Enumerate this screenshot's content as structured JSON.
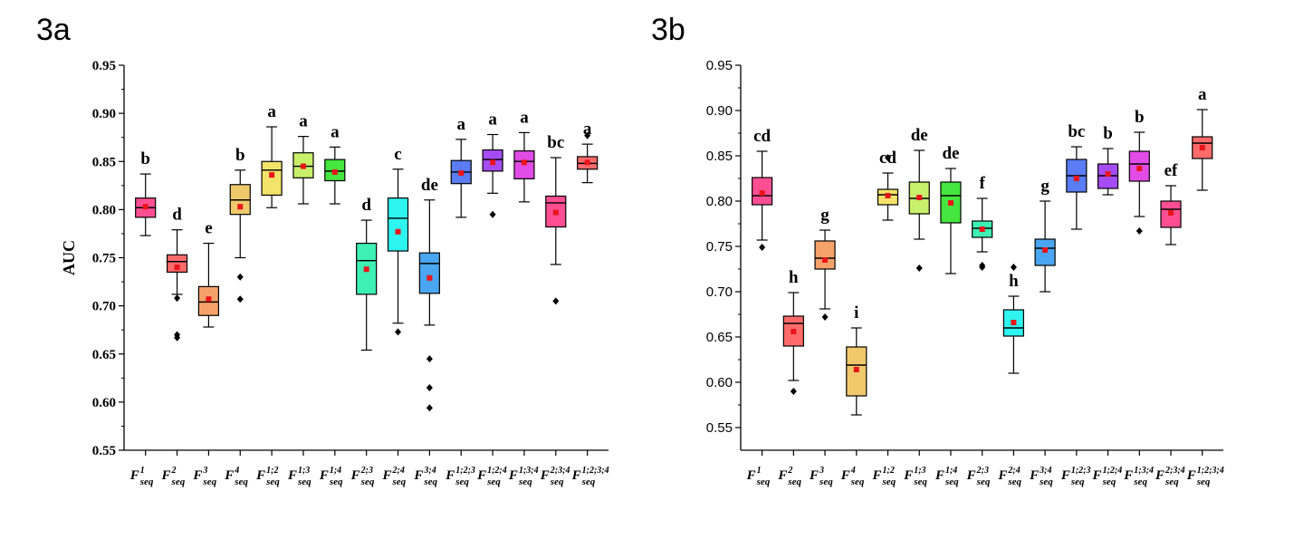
{
  "chart_data": [
    {
      "panel_label": "3a",
      "type": "box",
      "ylabel": "AUC",
      "ylim": [
        0.55,
        0.95
      ],
      "yticks": [
        "0.55",
        "0.60",
        "0.65",
        "0.70",
        "0.75",
        "0.80",
        "0.85",
        "0.90",
        "0.95"
      ],
      "categories": [
        {
          "base": "F",
          "sup": "1",
          "sub": "seq"
        },
        {
          "base": "F",
          "sup": "2",
          "sub": "seq"
        },
        {
          "base": "F",
          "sup": "3",
          "sub": "seq"
        },
        {
          "base": "F",
          "sup": "4",
          "sub": "seq"
        },
        {
          "base": "F",
          "sup": "1;2",
          "sub": "seq"
        },
        {
          "base": "F",
          "sup": "1;3",
          "sub": "seq"
        },
        {
          "base": "F",
          "sup": "1;4",
          "sub": "seq"
        },
        {
          "base": "F",
          "sup": "2;3",
          "sub": "seq"
        },
        {
          "base": "F",
          "sup": "2;4",
          "sub": "seq"
        },
        {
          "base": "F",
          "sup": "3;4",
          "sub": "seq"
        },
        {
          "base": "F",
          "sup": "1;2;3",
          "sub": "seq"
        },
        {
          "base": "F",
          "sup": "1;2;4",
          "sub": "seq"
        },
        {
          "base": "F",
          "sup": "1;3;4",
          "sub": "seq"
        },
        {
          "base": "F",
          "sup": "2;3;4",
          "sub": "seq"
        },
        {
          "base": "F",
          "sup": "1;2;3;4",
          "sub": "seq"
        }
      ],
      "boxes": [
        {
          "color": "#ff4f92",
          "whisker_low": 0.773,
          "q1": 0.792,
          "median": 0.802,
          "q3": 0.812,
          "whisker_high": 0.837,
          "mean": 0.803,
          "outliers": [],
          "letter": "b"
        },
        {
          "color": "#ff6b6b",
          "whisker_low": 0.712,
          "q1": 0.735,
          "median": 0.746,
          "q3": 0.753,
          "whisker_high": 0.779,
          "mean": 0.74,
          "outliers": [
            0.708,
            0.67,
            0.667
          ],
          "letter": "d"
        },
        {
          "color": "#f5a26a",
          "whisker_low": 0.678,
          "q1": 0.69,
          "median": 0.704,
          "q3": 0.72,
          "whisker_high": 0.765,
          "mean": 0.707,
          "outliers": [],
          "letter": "e"
        },
        {
          "color": "#f0c96c",
          "whisker_low": 0.75,
          "q1": 0.795,
          "median": 0.81,
          "q3": 0.826,
          "whisker_high": 0.841,
          "mean": 0.803,
          "outliers": [
            0.73,
            0.707
          ],
          "letter": "b"
        },
        {
          "color": "#f3e36a",
          "whisker_low": 0.802,
          "q1": 0.815,
          "median": 0.841,
          "q3": 0.85,
          "whisker_high": 0.886,
          "mean": 0.836,
          "outliers": [],
          "letter": "a"
        },
        {
          "color": "#c9f06a",
          "whisker_low": 0.806,
          "q1": 0.833,
          "median": 0.845,
          "q3": 0.859,
          "whisker_high": 0.876,
          "mean": 0.845,
          "outliers": [],
          "letter": "a"
        },
        {
          "color": "#45e63f",
          "whisker_low": 0.806,
          "q1": 0.83,
          "median": 0.84,
          "q3": 0.852,
          "whisker_high": 0.865,
          "mean": 0.839,
          "outliers": [],
          "letter": "a"
        },
        {
          "color": "#3ef0b3",
          "whisker_low": 0.654,
          "q1": 0.712,
          "median": 0.747,
          "q3": 0.765,
          "whisker_high": 0.789,
          "mean": 0.738,
          "outliers": [],
          "letter": "d"
        },
        {
          "color": "#2ef5f0",
          "whisker_low": 0.682,
          "q1": 0.757,
          "median": 0.791,
          "q3": 0.812,
          "whisker_high": 0.842,
          "mean": 0.777,
          "outliers": [
            0.673
          ],
          "letter": "c"
        },
        {
          "color": "#4aa6f0",
          "whisker_low": 0.68,
          "q1": 0.713,
          "median": 0.744,
          "q3": 0.755,
          "whisker_high": 0.81,
          "mean": 0.729,
          "outliers": [
            0.645,
            0.615,
            0.594
          ],
          "letter": "de"
        },
        {
          "color": "#5a7cf5",
          "whisker_low": 0.792,
          "q1": 0.827,
          "median": 0.839,
          "q3": 0.851,
          "whisker_high": 0.873,
          "mean": 0.838,
          "outliers": [],
          "letter": "a"
        },
        {
          "color": "#a64cf5",
          "whisker_low": 0.817,
          "q1": 0.84,
          "median": 0.852,
          "q3": 0.862,
          "whisker_high": 0.878,
          "mean": 0.849,
          "outliers": [
            0.795
          ],
          "letter": "a"
        },
        {
          "color": "#e24ce6",
          "whisker_low": 0.808,
          "q1": 0.832,
          "median": 0.85,
          "q3": 0.861,
          "whisker_high": 0.88,
          "mean": 0.849,
          "outliers": [],
          "letter": "a"
        },
        {
          "color": "#ff4f92",
          "whisker_low": 0.743,
          "q1": 0.782,
          "median": 0.807,
          "q3": 0.814,
          "whisker_high": 0.854,
          "mean": 0.797,
          "outliers": [
            0.705
          ],
          "letter": "bc"
        },
        {
          "color": "#ff6b6b",
          "whisker_low": 0.828,
          "q1": 0.842,
          "median": 0.848,
          "q3": 0.855,
          "whisker_high": 0.868,
          "mean": 0.849,
          "outliers": [
            0.877
          ],
          "letter": "a"
        }
      ]
    },
    {
      "panel_label": "3b",
      "type": "box",
      "ylabel": "",
      "ylim": [
        0.525,
        0.95
      ],
      "yticks": [
        "0.55",
        "0.60",
        "0.65",
        "0.70",
        "0.75",
        "0.80",
        "0.85",
        "0.90",
        "0.95"
      ],
      "categories": [
        {
          "base": "F",
          "sup": "1",
          "sub": "seq"
        },
        {
          "base": "F",
          "sup": "2",
          "sub": "seq"
        },
        {
          "base": "F",
          "sup": "3",
          "sub": "seq"
        },
        {
          "base": "F",
          "sup": "4",
          "sub": "seq"
        },
        {
          "base": "F",
          "sup": "1;2",
          "sub": "seq"
        },
        {
          "base": "F",
          "sup": "1;3",
          "sub": "seq"
        },
        {
          "base": "F",
          "sup": "1;4",
          "sub": "seq"
        },
        {
          "base": "F",
          "sup": "2;3",
          "sub": "seq"
        },
        {
          "base": "F",
          "sup": "2;4",
          "sub": "seq"
        },
        {
          "base": "F",
          "sup": "3;4",
          "sub": "seq"
        },
        {
          "base": "F",
          "sup": "1;2;3",
          "sub": "seq"
        },
        {
          "base": "F",
          "sup": "1;2;4",
          "sub": "seq"
        },
        {
          "base": "F",
          "sup": "1;3;4",
          "sub": "seq"
        },
        {
          "base": "F",
          "sup": "2;3;4",
          "sub": "seq"
        },
        {
          "base": "F",
          "sup": "1;2;3;4",
          "sub": "seq"
        }
      ],
      "boxes": [
        {
          "color": "#ff4f92",
          "whisker_low": 0.757,
          "q1": 0.796,
          "median": 0.806,
          "q3": 0.826,
          "whisker_high": 0.855,
          "mean": 0.809,
          "outliers": [
            0.749
          ],
          "letter": "cd"
        },
        {
          "color": "#ff6b6b",
          "whisker_low": 0.602,
          "q1": 0.64,
          "median": 0.665,
          "q3": 0.673,
          "whisker_high": 0.699,
          "mean": 0.656,
          "outliers": [
            0.59
          ],
          "letter": "h"
        },
        {
          "color": "#f5a26a",
          "whisker_low": 0.681,
          "q1": 0.725,
          "median": 0.737,
          "q3": 0.756,
          "whisker_high": 0.768,
          "mean": 0.735,
          "outliers": [
            0.672
          ],
          "letter": "g"
        },
        {
          "color": "#f0c96c",
          "whisker_low": 0.564,
          "q1": 0.585,
          "median": 0.619,
          "q3": 0.639,
          "whisker_high": 0.66,
          "mean": 0.614,
          "outliers": [],
          "letter": "i"
        },
        {
          "color": "#f3e36a",
          "whisker_low": 0.779,
          "q1": 0.796,
          "median": 0.807,
          "q3": 0.813,
          "whisker_high": 0.831,
          "mean": 0.806,
          "outliers": [
            0.848
          ],
          "letter": "cd"
        },
        {
          "color": "#c9f06a",
          "whisker_low": 0.758,
          "q1": 0.786,
          "median": 0.803,
          "q3": 0.821,
          "whisker_high": 0.856,
          "mean": 0.804,
          "outliers": [
            0.726
          ],
          "letter": "de"
        },
        {
          "color": "#45e63f",
          "whisker_low": 0.72,
          "q1": 0.776,
          "median": 0.806,
          "q3": 0.821,
          "whisker_high": 0.836,
          "mean": 0.798,
          "outliers": [],
          "letter": "de"
        },
        {
          "color": "#3ef0b3",
          "whisker_low": 0.744,
          "q1": 0.76,
          "median": 0.77,
          "q3": 0.778,
          "whisker_high": 0.803,
          "mean": 0.769,
          "outliers": [
            0.729,
            0.727
          ],
          "letter": "f"
        },
        {
          "color": "#2ef5f0",
          "whisker_low": 0.61,
          "q1": 0.651,
          "median": 0.66,
          "q3": 0.68,
          "whisker_high": 0.695,
          "mean": 0.666,
          "outliers": [
            0.727
          ],
          "letter": "h"
        },
        {
          "color": "#4aa6f0",
          "whisker_low": 0.7,
          "q1": 0.729,
          "median": 0.748,
          "q3": 0.758,
          "whisker_high": 0.8,
          "mean": 0.746,
          "outliers": [],
          "letter": "g"
        },
        {
          "color": "#5a7cf5",
          "whisker_low": 0.769,
          "q1": 0.81,
          "median": 0.828,
          "q3": 0.846,
          "whisker_high": 0.86,
          "mean": 0.825,
          "outliers": [],
          "letter": "bc"
        },
        {
          "color": "#a64cf5",
          "whisker_low": 0.807,
          "q1": 0.814,
          "median": 0.828,
          "q3": 0.841,
          "whisker_high": 0.858,
          "mean": 0.83,
          "outliers": [],
          "letter": "b"
        },
        {
          "color": "#e24ce6",
          "whisker_low": 0.783,
          "q1": 0.822,
          "median": 0.841,
          "q3": 0.855,
          "whisker_high": 0.876,
          "mean": 0.836,
          "outliers": [
            0.767
          ],
          "letter": "b"
        },
        {
          "color": "#ff4f92",
          "whisker_low": 0.752,
          "q1": 0.771,
          "median": 0.791,
          "q3": 0.8,
          "whisker_high": 0.817,
          "mean": 0.787,
          "outliers": [],
          "letter": "ef"
        },
        {
          "color": "#ff6b6b",
          "whisker_low": 0.812,
          "q1": 0.847,
          "median": 0.864,
          "q3": 0.871,
          "whisker_high": 0.901,
          "mean": 0.859,
          "outliers": [],
          "letter": "a"
        }
      ]
    }
  ]
}
